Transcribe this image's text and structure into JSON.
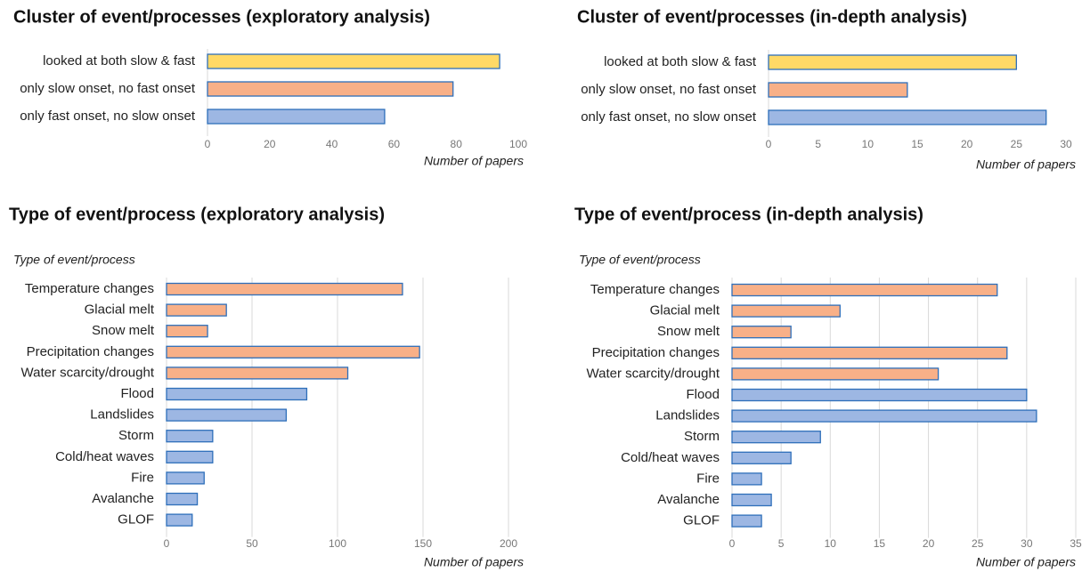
{
  "chart_data": [
    {
      "type": "bar",
      "title": "Cluster of event/processes (exploratory analysis)",
      "categories": [
        "looked at both slow & fast",
        "only slow onset, no fast onset",
        "only fast onset, no slow onset"
      ],
      "values": [
        94,
        79,
        57
      ],
      "colors": [
        "#ffd966",
        "#f8b088",
        "#9db7e3"
      ],
      "xlim": [
        0,
        100
      ],
      "xticks": [
        0,
        20,
        40,
        60,
        80,
        100
      ],
      "xlabel": "Number of papers",
      "grid": false
    },
    {
      "type": "bar",
      "title": "Cluster of event/processes (in-depth analysis)",
      "categories": [
        "looked at both slow & fast",
        "only slow onset, no fast onset",
        "only fast onset, no slow onset"
      ],
      "values": [
        25,
        14,
        28
      ],
      "colors": [
        "#ffd966",
        "#f8b088",
        "#9db7e3"
      ],
      "xlim": [
        0,
        30
      ],
      "xticks": [
        0,
        5,
        10,
        15,
        20,
        25,
        30
      ],
      "xlabel": "Number of papers",
      "grid": false
    },
    {
      "type": "bar",
      "title": "Type of event/process (exploratory analysis)",
      "ylabel": "Type of event/process",
      "categories": [
        "Temperature changes",
        "Glacial melt",
        "Snow melt",
        "Precipitation changes",
        "Water scarcity/drought",
        "Flood",
        "Landslides",
        "Storm",
        "Cold/heat waves",
        "Fire",
        "Avalanche",
        "GLOF"
      ],
      "values": [
        138,
        35,
        24,
        148,
        106,
        82,
        70,
        27,
        27,
        22,
        18,
        15
      ],
      "colors": [
        "#f8b088",
        "#f8b088",
        "#f8b088",
        "#f8b088",
        "#f8b088",
        "#9db7e3",
        "#9db7e3",
        "#9db7e3",
        "#9db7e3",
        "#9db7e3",
        "#9db7e3",
        "#9db7e3"
      ],
      "xlim": [
        0,
        200
      ],
      "xticks": [
        0,
        50,
        100,
        150,
        200
      ],
      "xlabel": "Number of papers",
      "grid": true
    },
    {
      "type": "bar",
      "title": "Type of event/process (in-depth analysis)",
      "ylabel": "Type of event/process",
      "categories": [
        "Temperature changes",
        "Glacial melt",
        "Snow melt",
        "Precipitation changes",
        "Water scarcity/drought",
        "Flood",
        "Landslides",
        "Storm",
        "Cold/heat waves",
        "Fire",
        "Avalanche",
        "GLOF"
      ],
      "values": [
        27,
        11,
        6,
        28,
        21,
        30,
        31,
        9,
        6,
        3,
        4,
        3
      ],
      "colors": [
        "#f8b088",
        "#f8b088",
        "#f8b088",
        "#f8b088",
        "#f8b088",
        "#9db7e3",
        "#9db7e3",
        "#9db7e3",
        "#9db7e3",
        "#9db7e3",
        "#9db7e3",
        "#9db7e3"
      ],
      "xlim": [
        0,
        35
      ],
      "xticks": [
        0,
        5,
        10,
        15,
        20,
        25,
        30,
        35
      ],
      "xlabel": "Number of papers",
      "grid": true
    }
  ]
}
